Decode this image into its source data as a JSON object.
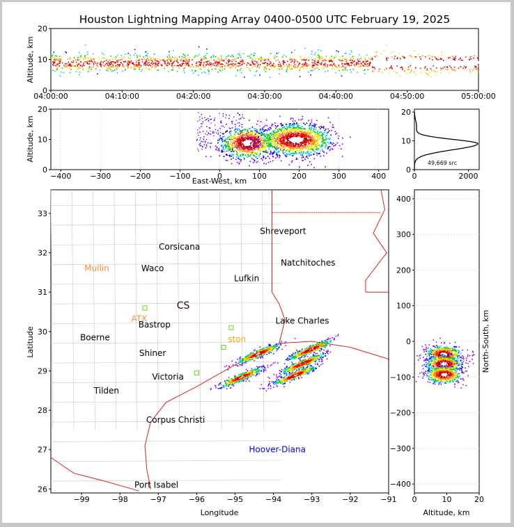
{
  "chart_data": [
    {
      "id": "time_height",
      "type": "scatter",
      "title": "Houston Lightning Mapping Array 0400-0500 UTC February 19, 2025",
      "ylabel": "Altitude, km",
      "xlabel": "",
      "ylim": [
        0,
        20
      ],
      "yticks": [
        "0",
        "10",
        "20"
      ],
      "xticks": [
        "04:00:00",
        "04:10:00",
        "04:20:00",
        "04:30:00",
        "04:40:00",
        "04:50:00",
        "05:00:00"
      ],
      "xlim_minutes": [
        0,
        60
      ],
      "band_altitude_km": [
        4,
        16
      ],
      "peak_altitude_km": 9
    },
    {
      "id": "east_west_altitude",
      "type": "scatter",
      "xlabel": "East-West, km",
      "ylabel": "Altitude, km",
      "xlim": [
        -425,
        425
      ],
      "ylim": [
        0,
        20
      ],
      "xticks": [
        "−400",
        "−300",
        "−200",
        "−100",
        "0",
        "100",
        "200",
        "300",
        "400"
      ],
      "yticks": [
        "0",
        "10",
        "20"
      ],
      "cores": [
        {
          "x": 70,
          "y": 9
        },
        {
          "x": 190,
          "y": 10
        }
      ]
    },
    {
      "id": "altitude_histogram",
      "type": "line",
      "xlim": [
        0,
        2400
      ],
      "ylim": [
        0,
        21
      ],
      "xticks": [
        "0",
        "2000"
      ],
      "yticks": [
        "0",
        "10",
        "20"
      ],
      "annotation": "49,669 src",
      "peak_altitude_km": 9,
      "peak_count": 2350
    },
    {
      "id": "plan_view",
      "type": "scatter",
      "xlabel": "Longitude",
      "ylabel": "Latitude",
      "xlim": [
        -99.8,
        -91
      ],
      "ylim": [
        25.9,
        33.6
      ],
      "xticks": [
        "−99",
        "−98",
        "−97",
        "−96",
        "−95",
        "−94",
        "−93",
        "−92",
        "−91"
      ],
      "yticks": [
        "26",
        "27",
        "28",
        "29",
        "30",
        "31",
        "32",
        "33"
      ],
      "cities": [
        {
          "name": "Shreveport",
          "lon": -93.75,
          "lat": 32.55,
          "color": "#000000"
        },
        {
          "name": "Corsicana",
          "lon": -96.45,
          "lat": 32.15,
          "color": "#000000"
        },
        {
          "name": "Natchitoches",
          "lon": -93.1,
          "lat": 31.75,
          "color": "#000000"
        },
        {
          "name": "Mullin",
          "lon": -98.6,
          "lat": 31.6,
          "color": "#ff8c3c"
        },
        {
          "name": "Waco",
          "lon": -97.15,
          "lat": 31.6,
          "color": "#000000"
        },
        {
          "name": "Lufkin",
          "lon": -94.7,
          "lat": 31.35,
          "color": "#000000"
        },
        {
          "name": "CS",
          "lon": -96.35,
          "lat": 30.65,
          "color": "#3a0000"
        },
        {
          "name": "ATX",
          "lon": -97.5,
          "lat": 30.32,
          "color": "#ff8c3c"
        },
        {
          "name": "Lake Charles",
          "lon": -93.25,
          "lat": 30.27,
          "color": "#000000"
        },
        {
          "name": "Bastrop",
          "lon": -97.1,
          "lat": 30.17,
          "color": "#000000"
        },
        {
          "name": "ston",
          "lon": -94.95,
          "lat": 29.8,
          "color": "#ffa500"
        },
        {
          "name": "Boerne",
          "lon": -98.65,
          "lat": 29.85,
          "color": "#000000"
        },
        {
          "name": "Shiner",
          "lon": -97.15,
          "lat": 29.45,
          "color": "#000000"
        },
        {
          "name": "Victoria",
          "lon": -96.75,
          "lat": 28.85,
          "color": "#000000"
        },
        {
          "name": "Tilden",
          "lon": -98.35,
          "lat": 28.5,
          "color": "#000000"
        },
        {
          "name": "Corpus Christi",
          "lon": -96.55,
          "lat": 27.75,
          "color": "#000000"
        },
        {
          "name": "Hoover-Diana",
          "lon": -93.9,
          "lat": 27.0,
          "color": "#0000ff"
        },
        {
          "name": "Port Isabel",
          "lon": -97.05,
          "lat": 26.1,
          "color": "#000000"
        }
      ],
      "storm_cells": [
        {
          "lon": -94.4,
          "lat": 29.45
        },
        {
          "lon": -93.25,
          "lat": 29.2
        },
        {
          "lon": -93.45,
          "lat": 28.9
        },
        {
          "lon": -94.85,
          "lat": 28.85
        },
        {
          "lon": -93.05,
          "lat": 29.55
        }
      ]
    },
    {
      "id": "altitude_north_south",
      "type": "scatter",
      "xlabel": "Altitude, km",
      "ylabel": "North-South, km",
      "xlim": [
        0,
        20
      ],
      "ylim": [
        -425,
        425
      ],
      "xticks": [
        "0",
        "10",
        "20"
      ],
      "yticks": [
        "400",
        "300",
        "200",
        "100",
        "0",
        "−100",
        "−200",
        "−300",
        "−400"
      ],
      "cores": [
        {
          "x": 9,
          "y": -35
        },
        {
          "x": 9,
          "y": -62
        },
        {
          "x": 9,
          "y": -92
        }
      ]
    }
  ]
}
